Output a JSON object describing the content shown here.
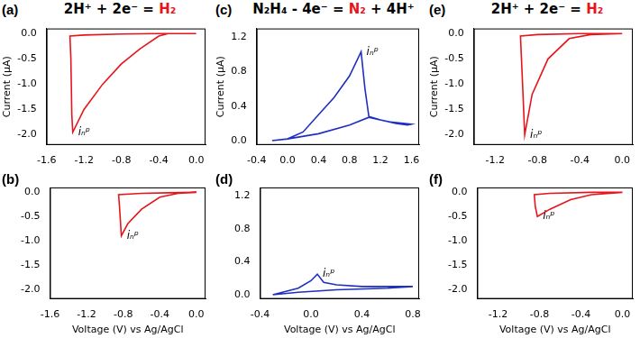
{
  "chart_data": [
    {
      "panel": "(a)",
      "type": "line",
      "title": [
        {
          "text": "2H⁺ + 2e⁻ = ",
          "color": "#000000"
        },
        {
          "text": "H₂",
          "color": "#e8141c"
        }
      ],
      "y_label": "Current (μA)",
      "x": [
        0,
        -0.3,
        -0.4,
        -0.6,
        -0.8,
        -1.0,
        -1.2,
        -1.32,
        -1.33,
        -1.34,
        -1.35,
        -1.2,
        -0.8,
        -0.4,
        0
      ],
      "series": [
        {
          "color": "#e8141c",
          "values": [
            0,
            0,
            -0.05,
            -0.3,
            -0.6,
            -1.0,
            -1.5,
            -1.95,
            -1.6,
            -0.5,
            -0.05,
            -0.03,
            -0.01,
            0,
            0
          ]
        }
      ],
      "xlim": [
        -1.6,
        0.1
      ],
      "xticks": [
        -1.6,
        -1.2,
        -0.8,
        -0.4,
        {
          "value": 0,
          "label": "0.0"
        }
      ],
      "ylim": [
        -2.2,
        0.1
      ],
      "yticks": [
        {
          "value": -2,
          "label": "-2.0"
        },
        -1.5,
        {
          "value": -1,
          "label": "-1.0"
        },
        -0.5,
        {
          "value": 0,
          "label": "0.0"
        }
      ],
      "annotations": [
        {
          "text": "iₙᵖ",
          "x": -1.32,
          "y": -1.95
        }
      ],
      "grid": false
    },
    {
      "panel": "(b)",
      "type": "line",
      "x_label": "Voltage (V) vs Ag/AgCl",
      "x": [
        0,
        -0.2,
        -0.4,
        -0.6,
        -0.75,
        -0.82,
        -0.83,
        -0.84,
        -0.85,
        -0.6,
        -0.3,
        0
      ],
      "series": [
        {
          "color": "#e8141c",
          "values": [
            0,
            -0.02,
            -0.1,
            -0.35,
            -0.65,
            -0.9,
            -0.6,
            -0.3,
            -0.05,
            -0.02,
            -0.01,
            0
          ]
        }
      ],
      "xlim": [
        -1.6,
        0.1
      ],
      "xticks": [
        -1.6,
        -1.2,
        -0.8,
        -0.4,
        {
          "value": 0,
          "label": "0.0"
        }
      ],
      "ylim": [
        -2.2,
        0.1
      ],
      "yticks": [
        {
          "value": -2,
          "label": "-2.0"
        },
        -1.5,
        {
          "value": -1,
          "label": "-1.0"
        },
        -0.5,
        {
          "value": 0,
          "label": "0.0"
        }
      ],
      "annotations": [
        {
          "text": "iₙᵖ",
          "x": -0.82,
          "y": -0.9
        }
      ],
      "grid": false
    },
    {
      "panel": "(c)",
      "type": "line",
      "title": [
        {
          "text": "N₂H₄ - 4e⁻ = ",
          "color": "#000000"
        },
        {
          "text": "N₂",
          "color": "#e8141c"
        },
        {
          "text": " + 4H⁺",
          "color": "#000000"
        }
      ],
      "y_label": "Current (μA)",
      "x": [
        -0.2,
        0,
        0.2,
        0.4,
        0.6,
        0.8,
        0.95,
        1.0,
        1.05,
        1.2,
        1.4,
        1.55,
        1.6,
        1.3,
        1.05,
        0.8,
        0.4,
        0,
        -0.2
      ],
      "series": [
        {
          "color": "#1f2fbf",
          "values": [
            0,
            0.02,
            0.1,
            0.3,
            0.5,
            0.75,
            1.03,
            0.6,
            0.28,
            0.24,
            0.2,
            0.18,
            0.19,
            0.22,
            0.27,
            0.18,
            0.08,
            0.02,
            0
          ]
        }
      ],
      "xlim": [
        -0.4,
        1.7
      ],
      "xticks": [
        -0.4,
        {
          "value": 0,
          "label": "0.0"
        },
        0.4,
        0.8,
        1.2,
        1.6
      ],
      "ylim": [
        -0.05,
        1.3
      ],
      "yticks": [
        {
          "value": 0,
          "label": "0.0"
        },
        0.4,
        0.8,
        1.2
      ],
      "annotations": [
        {
          "text": "iₙᵖ",
          "x": 0.95,
          "y": 1.03
        }
      ],
      "grid": false
    },
    {
      "panel": "(d)",
      "type": "line",
      "x_label": "Voltage (V) vs Ag/AgCl",
      "x": [
        -0.3,
        -0.1,
        0,
        0.05,
        0.1,
        0.2,
        0.4,
        0.8,
        0.6,
        0.2,
        -0.1,
        -0.3
      ],
      "series": [
        {
          "color": "#1f2fbf",
          "values": [
            0,
            0.08,
            0.17,
            0.25,
            0.15,
            0.12,
            0.1,
            0.1,
            0.08,
            0.06,
            0.03,
            0
          ]
        }
      ],
      "xlim": [
        -0.4,
        0.85
      ],
      "xticks": [
        -0.4,
        {
          "value": 0,
          "label": "0.0"
        },
        0.4,
        0.8
      ],
      "ylim": [
        -0.05,
        1.3
      ],
      "yticks": [
        {
          "value": 0,
          "label": "0.0"
        },
        0.4,
        0.8,
        1.2
      ],
      "annotations": [
        {
          "text": "iₙᵖ",
          "x": 0.05,
          "y": 0.25
        }
      ],
      "grid": false
    },
    {
      "panel": "(e)",
      "type": "line",
      "title": [
        {
          "text": "2H⁺ + 2e⁻ = ",
          "color": "#000000"
        },
        {
          "text": "H₂",
          "color": "#e8141c"
        }
      ],
      "y_label": "Current (μA)",
      "x": [
        0,
        -0.3,
        -0.5,
        -0.7,
        -0.85,
        -0.92,
        -0.94,
        -0.96,
        -0.8,
        -0.4,
        0
      ],
      "series": [
        {
          "color": "#e8141c",
          "values": [
            0,
            -0.02,
            -0.1,
            -0.5,
            -1.2,
            -2.0,
            -1.0,
            -0.05,
            -0.02,
            0,
            0
          ]
        }
      ],
      "xlim": [
        -1.4,
        0.1
      ],
      "xticks": [
        -1.2,
        -0.8,
        -0.4,
        {
          "value": 0,
          "label": "0.0"
        }
      ],
      "ylim": [
        -2.2,
        0.1
      ],
      "yticks": [
        {
          "value": -2,
          "label": "-2.0"
        },
        -1.5,
        {
          "value": -1,
          "label": "-1.0"
        },
        -0.5,
        {
          "value": 0,
          "label": "0.0"
        }
      ],
      "annotations": [
        {
          "text": "iₙᵖ",
          "x": -0.92,
          "y": -2.0
        }
      ],
      "grid": false
    },
    {
      "panel": "(f)",
      "type": "line",
      "x_label": "Voltage (V) vs Ag/AgCl",
      "x": [
        0,
        -0.3,
        -0.5,
        -0.7,
        -0.82,
        -0.84,
        -0.85,
        -0.7,
        -0.3,
        0
      ],
      "series": [
        {
          "color": "#e8141c",
          "values": [
            0,
            -0.05,
            -0.15,
            -0.35,
            -0.5,
            -0.3,
            -0.05,
            -0.02,
            0,
            0
          ]
        }
      ],
      "xlim": [
        -1.4,
        0.1
      ],
      "xticks": [
        -1.2,
        -0.8,
        -0.4,
        {
          "value": 0,
          "label": "0.0"
        }
      ],
      "ylim": [
        -2.2,
        0.1
      ],
      "yticks": [
        {
          "value": -2,
          "label": "-2.0"
        },
        -1.5,
        {
          "value": -1,
          "label": "-1.0"
        },
        -0.5,
        {
          "value": 0,
          "label": "0.0"
        }
      ],
      "annotations": [
        {
          "text": "iₙᵖ",
          "x": -0.82,
          "y": -0.5
        }
      ],
      "grid": false
    }
  ]
}
